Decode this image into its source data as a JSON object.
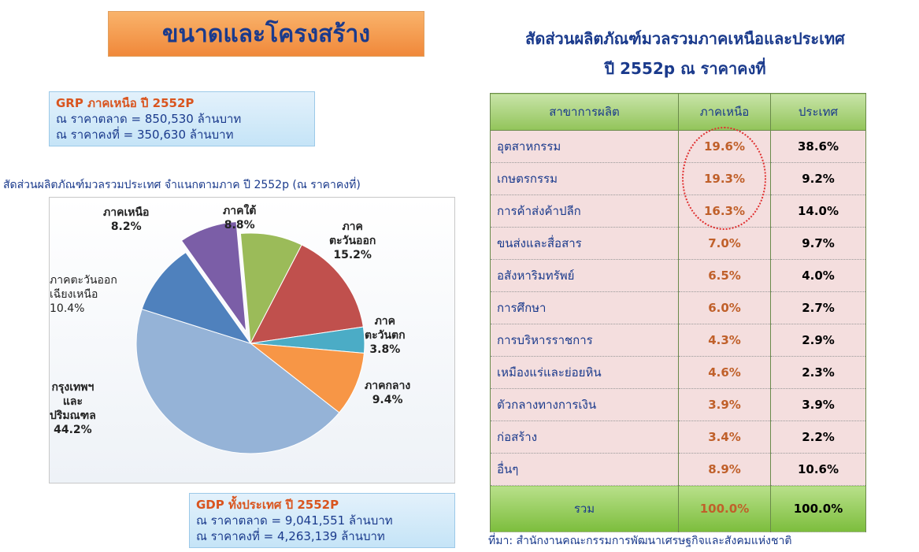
{
  "header": {
    "title": "ขนาดและโครงสร้าง",
    "right_title": [
      "สัดส่วนผลิตภัณฑ์มวลรวมภาคเหนือและประเทศ",
      "ปี 2552p ณ ราคาคงที่"
    ]
  },
  "grp_box": {
    "heading": "GRP ภาคเหนือ ปี 2552P",
    "lines": [
      "ณ ราคาตลาด = 850,530 ล้านบาท",
      "ณ ราคาคงที่ = 350,630 ล้านบาท"
    ]
  },
  "gdp_box": {
    "heading": "GDP ทั้งประเทศ ปี 2552P",
    "lines": [
      "ณ ราคาตลาด = 9,041,551 ล้านบาท",
      "ณ ราคาคงที่ = 4,263,139 ล้านบาท"
    ]
  },
  "chart_data": {
    "type": "pie",
    "title": "สัดส่วนผลิตภัณฑ์มวลรวมประเทศ จำแนกตามภาค ปี 2552p (ณ ราคาคงที่)",
    "categories": [
      "ภาคเหนือ",
      "ภาคใต้",
      "ภาค\nตะวันออก",
      "ภาค\nตะวันตก",
      "ภาคกลาง",
      "กรุงเทพฯ\nและ\nปริมณฑล",
      "ภาคตะวันออก\nเฉียงเหนือ"
    ],
    "values": [
      8.2,
      8.8,
      15.2,
      3.8,
      9.4,
      44.2,
      10.4
    ],
    "value_labels": [
      "8.2%",
      "8.8%",
      "15.2%",
      "3.8%",
      "9.4%",
      "44.2%",
      "10.4%"
    ],
    "colors": [
      "#7b5ea7",
      "#9bbb59",
      "#c0504d",
      "#4bacc6",
      "#f79646",
      "#95b3d7",
      "#4f81bd"
    ]
  },
  "table": {
    "header": [
      "สาขาการผลิต",
      "ภาคเหนือ",
      "ประเทศ"
    ],
    "rows": [
      [
        "อุตสาหกรรม",
        "19.6%",
        "38.6%"
      ],
      [
        "เกษตรกรรม",
        "19.3%",
        "9.2%"
      ],
      [
        "การค้าส่งค้าปลีก",
        "16.3%",
        "14.0%"
      ],
      [
        "ขนส่งและสื่อสาร",
        "7.0%",
        "9.7%"
      ],
      [
        "อสังหาริมทรัพย์",
        "6.5%",
        "4.0%"
      ],
      [
        "การศึกษา",
        "6.0%",
        "2.7%"
      ],
      [
        "การบริหารราชการ",
        "4.3%",
        "2.9%"
      ],
      [
        "เหมืองแร่และย่อยหิน",
        "4.6%",
        "2.3%"
      ],
      [
        "ตัวกลางทางการเงิน",
        "3.9%",
        "3.9%"
      ],
      [
        "ก่อสร้าง",
        "3.4%",
        "2.2%"
      ],
      [
        "อื่นๆ",
        "8.9%",
        "10.6%"
      ]
    ],
    "total": [
      "รวม",
      "100.0%",
      "100.0%"
    ]
  },
  "source": "ที่มา: สำนักงานคณะกรรมการพัฒนาเศรษฐกิจและสังคมแห่งชาติ"
}
